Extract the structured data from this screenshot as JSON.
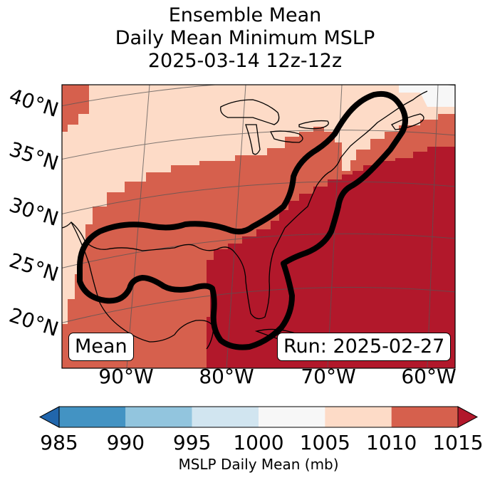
{
  "title": {
    "line1": "Ensemble Mean",
    "line2": "Daily Mean Minimum MSLP",
    "line3": "2025-03-14 12z-12z"
  },
  "map": {
    "lat_labels": [
      "40°N",
      "35°N",
      "30°N",
      "25°N",
      "20°N"
    ],
    "lon_labels": [
      "90°W",
      "80°W",
      "70°W",
      "60°W"
    ],
    "mean_label": "Mean",
    "run_label": "Run: 2025-02-27",
    "fill_field": "MSLP daily mean, shaded by 5 mb bins",
    "contour_note": "Bold black contour outlines region of minimum MSLP"
  },
  "colorbar": {
    "title": "MSLP Daily Mean (mb)",
    "ticks": [
      "985",
      "990",
      "995",
      "1000",
      "1005",
      "1010",
      "1015"
    ],
    "bins": [
      {
        "range": "<985",
        "color": "#2166ac"
      },
      {
        "range": "985-990",
        "color": "#4393c3"
      },
      {
        "range": "990-995",
        "color": "#92c5de"
      },
      {
        "range": "995-1000",
        "color": "#d1e5f0"
      },
      {
        "range": "1000-1005",
        "color": "#f7f7f7"
      },
      {
        "range": "1005-1010",
        "color": "#fddbc7"
      },
      {
        "range": "1010-1015",
        "color": "#d6604d"
      },
      {
        "range": ">1015",
        "color": "#b2182b"
      }
    ]
  },
  "colors": {
    "c1005": "#fddbc7",
    "c1010": "#d6604d",
    "c1015": "#b2182b"
  }
}
